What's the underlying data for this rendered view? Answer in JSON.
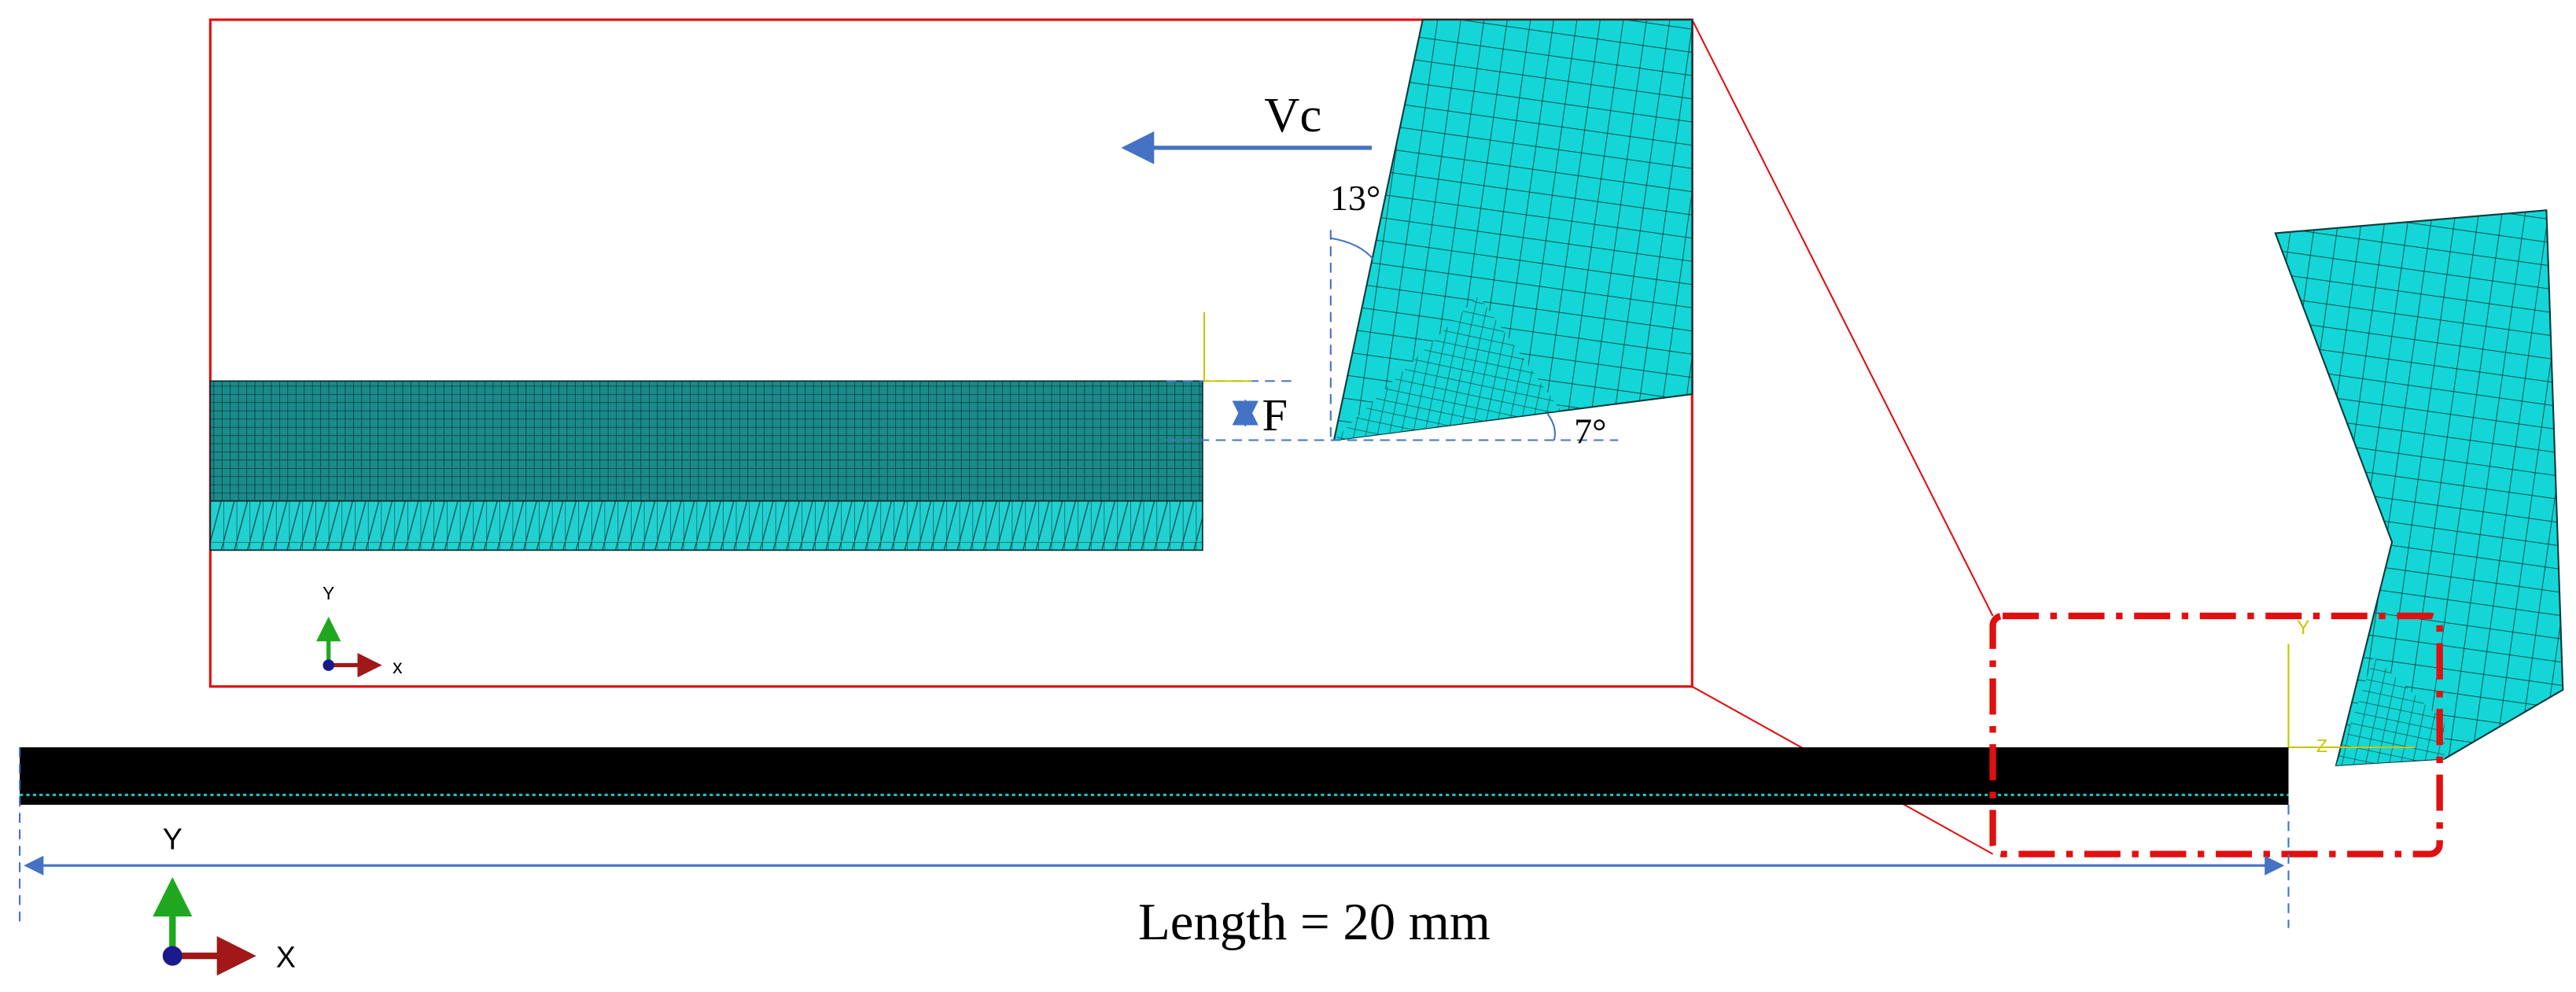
{
  "labels": {
    "cutting_speed": "Vc",
    "rake_angle": "13°",
    "clearance_angle": "7°",
    "feed": "F",
    "length": "Length = 20 mm"
  },
  "inset_axes": {
    "y": "Y",
    "x": "x"
  },
  "main_axes": {
    "y": "Y",
    "x": "X"
  },
  "tool_axes": {
    "y": "Y",
    "z": "Z"
  }
}
